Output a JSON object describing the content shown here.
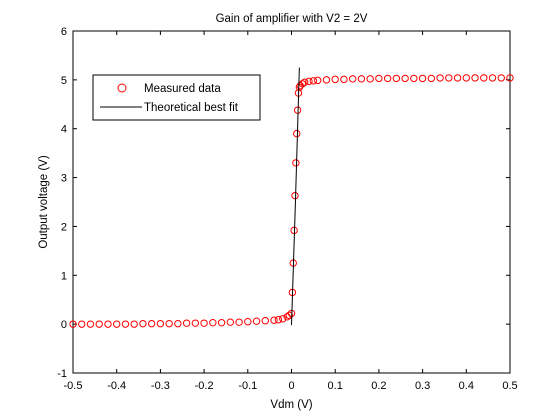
{
  "chart_data": {
    "type": "scatter",
    "title": "Gain of amplifier with V2 = 2V",
    "xlabel": "Vdm (V)",
    "ylabel": "Output voltage (V)",
    "xlim": [
      -0.5,
      0.5
    ],
    "ylim": [
      -1,
      6
    ],
    "xticks": [
      -0.5,
      -0.4,
      -0.3,
      -0.2,
      -0.1,
      0,
      0.1,
      0.2,
      0.3,
      0.4,
      0.5
    ],
    "xtick_labels": [
      "-0.5",
      "-0.4",
      "-0.3",
      "-0.2",
      "-0.1",
      "0",
      "0.1",
      "0.2",
      "0.3",
      "0.4",
      "0.5"
    ],
    "yticks": [
      -1,
      0,
      1,
      2,
      3,
      4,
      5,
      6
    ],
    "ytick_labels": [
      "-1",
      "0",
      "1",
      "2",
      "3",
      "4",
      "5",
      "6"
    ],
    "grid": false,
    "legend_position": "top-left",
    "series": [
      {
        "name": "Measured data",
        "style": "markers",
        "marker": "circle-open",
        "color": "#ff0000",
        "points": [
          [
            -0.5,
            0.0
          ],
          [
            -0.48,
            0.0
          ],
          [
            -0.46,
            0.0
          ],
          [
            -0.44,
            0.0
          ],
          [
            -0.42,
            0.0
          ],
          [
            -0.4,
            0.0
          ],
          [
            -0.38,
            0.0
          ],
          [
            -0.36,
            0.0
          ],
          [
            -0.34,
            0.01
          ],
          [
            -0.32,
            0.01
          ],
          [
            -0.3,
            0.01
          ],
          [
            -0.28,
            0.01
          ],
          [
            -0.26,
            0.01
          ],
          [
            -0.24,
            0.02
          ],
          [
            -0.22,
            0.02
          ],
          [
            -0.2,
            0.02
          ],
          [
            -0.18,
            0.03
          ],
          [
            -0.16,
            0.03
          ],
          [
            -0.14,
            0.04
          ],
          [
            -0.12,
            0.04
          ],
          [
            -0.1,
            0.05
          ],
          [
            -0.08,
            0.06
          ],
          [
            -0.06,
            0.07
          ],
          [
            -0.04,
            0.08
          ],
          [
            -0.03,
            0.09
          ],
          [
            -0.02,
            0.11
          ],
          [
            -0.01,
            0.15
          ],
          [
            -0.005,
            0.18
          ],
          [
            0.0,
            0.22
          ],
          [
            0.002,
            0.65
          ],
          [
            0.004,
            1.25
          ],
          [
            0.006,
            1.92
          ],
          [
            0.008,
            2.63
          ],
          [
            0.01,
            3.3
          ],
          [
            0.012,
            3.9
          ],
          [
            0.014,
            4.38
          ],
          [
            0.016,
            4.73
          ],
          [
            0.018,
            4.85
          ],
          [
            0.02,
            4.88
          ],
          [
            0.025,
            4.92
          ],
          [
            0.03,
            4.95
          ],
          [
            0.04,
            4.97
          ],
          [
            0.05,
            4.98
          ],
          [
            0.06,
            4.99
          ],
          [
            0.08,
            5.0
          ],
          [
            0.1,
            5.01
          ],
          [
            0.12,
            5.01
          ],
          [
            0.14,
            5.02
          ],
          [
            0.16,
            5.02
          ],
          [
            0.18,
            5.02
          ],
          [
            0.2,
            5.03
          ],
          [
            0.22,
            5.03
          ],
          [
            0.24,
            5.03
          ],
          [
            0.26,
            5.03
          ],
          [
            0.28,
            5.03
          ],
          [
            0.3,
            5.03
          ],
          [
            0.32,
            5.03
          ],
          [
            0.34,
            5.04
          ],
          [
            0.36,
            5.04
          ],
          [
            0.38,
            5.04
          ],
          [
            0.4,
            5.04
          ],
          [
            0.42,
            5.04
          ],
          [
            0.44,
            5.04
          ],
          [
            0.46,
            5.04
          ],
          [
            0.48,
            5.04
          ],
          [
            0.5,
            5.04
          ]
        ]
      },
      {
        "name": "Theoretical best fit",
        "style": "line",
        "color": "#000000",
        "points": [
          [
            0.0,
            -0.02
          ],
          [
            0.009,
            2.5
          ],
          [
            0.018,
            5.25
          ]
        ]
      }
    ]
  }
}
